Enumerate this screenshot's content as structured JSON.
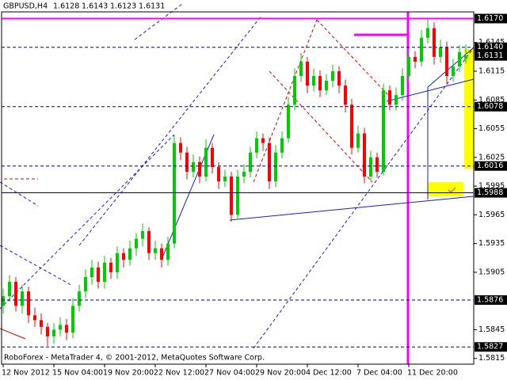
{
  "chart_data": {
    "type": "candlestick",
    "symbol": "GBPUSD,H4",
    "footer": "RoboForex - MetaTrader 4, © 2001-2012, MetaQuotes Software Corp.",
    "bull_color": "#00cc00",
    "bear_color": "#ff0000",
    "ylim": [
      1.5809,
      1.6177
    ],
    "yticks": [
      1.6145,
      1.6115,
      1.6085,
      1.6055,
      1.6025,
      1.5995,
      1.5965,
      1.5935,
      1.5905,
      1.5845,
      1.5815
    ],
    "levels": [
      {
        "value": 1.617,
        "label": "1.6170",
        "color": "#ff00ff",
        "dash": false
      },
      {
        "value": 1.614,
        "label": "1.6140",
        "color": "#000080",
        "dash": true
      },
      {
        "value": 1.6078,
        "color": "#000080",
        "dash": true
      },
      {
        "value": 1.6016,
        "color": "#000080",
        "dash": true
      },
      {
        "value": 1.5988,
        "color": "#000080",
        "dash": false
      },
      {
        "value": 1.5876,
        "color": "#000080",
        "dash": true
      },
      {
        "value": 1.5827,
        "color": "#000080",
        "dash": true
      }
    ],
    "categories": [
      "12 Nov 2012",
      null,
      null,
      null,
      null,
      null,
      null,
      null,
      "15 Nov 04:00",
      null,
      null,
      null,
      null,
      null,
      null,
      null,
      "19 Nov 20:00",
      null,
      null,
      null,
      null,
      null,
      null,
      null,
      "22 Nov 12:00",
      null,
      null,
      null,
      null,
      null,
      null,
      null,
      "27 Nov 04:00",
      null,
      null,
      null,
      null,
      null,
      null,
      null,
      "29 Nov 20:00",
      null,
      null,
      null,
      null,
      null,
      null,
      null,
      "4 Dec 12:00",
      null,
      null,
      null,
      null,
      null,
      null,
      null,
      "7 Dec 04:00",
      null,
      null,
      null,
      null,
      null,
      null,
      null,
      "11 Dec 20:00",
      null,
      null,
      null,
      null,
      null,
      null,
      null,
      null,
      null
    ],
    "ohlc": [
      [
        1.587,
        1.5888,
        1.5862,
        1.588
      ],
      [
        1.588,
        1.5902,
        1.5874,
        1.5895
      ],
      [
        1.5895,
        1.59,
        1.5864,
        1.587
      ],
      [
        1.587,
        1.5892,
        1.5862,
        1.5885
      ],
      [
        1.5885,
        1.589,
        1.5852,
        1.586
      ],
      [
        1.586,
        1.5868,
        1.5848,
        1.5855
      ],
      [
        1.5855,
        1.5862,
        1.584,
        1.5848
      ],
      [
        1.5848,
        1.5852,
        1.5828,
        1.5838
      ],
      [
        1.5838,
        1.5852,
        1.583,
        1.5845
      ],
      [
        1.5845,
        1.5858,
        1.5838,
        1.585
      ],
      [
        1.585,
        1.5856,
        1.5834,
        1.5842
      ],
      [
        1.5842,
        1.5878,
        1.5836,
        1.587
      ],
      [
        1.587,
        1.5892,
        1.5864,
        1.5885
      ],
      [
        1.5885,
        1.5908,
        1.5878,
        1.59
      ],
      [
        1.59,
        1.5918,
        1.5892,
        1.591
      ],
      [
        1.591,
        1.5916,
        1.5888,
        1.5895
      ],
      [
        1.5895,
        1.5922,
        1.5888,
        1.5915
      ],
      [
        1.5915,
        1.592,
        1.5898,
        1.5905
      ],
      [
        1.5905,
        1.5932,
        1.5898,
        1.5925
      ],
      [
        1.5925,
        1.593,
        1.591,
        1.5918
      ],
      [
        1.5918,
        1.5938,
        1.5912,
        1.593
      ],
      [
        1.593,
        1.5946,
        1.5922,
        1.594
      ],
      [
        1.594,
        1.5956,
        1.5932,
        1.5948
      ],
      [
        1.5948,
        1.5952,
        1.5918,
        1.5925
      ],
      [
        1.5925,
        1.5938,
        1.5918,
        1.593
      ],
      [
        1.593,
        1.5935,
        1.591,
        1.5918
      ],
      [
        1.5918,
        1.5942,
        1.5912,
        1.5935
      ],
      [
        1.5935,
        1.6048,
        1.593,
        1.604
      ],
      [
        1.604,
        1.6046,
        1.6022,
        1.603
      ],
      [
        1.603,
        1.6036,
        1.6002,
        1.601
      ],
      [
        1.601,
        1.6028,
        1.6004,
        1.602
      ],
      [
        1.602,
        1.6026,
        1.5998,
        1.6005
      ],
      [
        1.6005,
        1.6044,
        1.6,
        1.6035
      ],
      [
        1.6035,
        1.604,
        1.6008,
        1.6015
      ],
      [
        1.6015,
        1.602,
        1.5992,
        1.6
      ],
      [
        1.6,
        1.6012,
        1.5994,
        1.6005
      ],
      [
        1.6005,
        1.601,
        1.5958,
        1.5965
      ],
      [
        1.5965,
        1.6012,
        1.596,
        1.6005
      ],
      [
        1.6005,
        1.6018,
        1.5998,
        1.601
      ],
      [
        1.601,
        1.6036,
        1.6004,
        1.603
      ],
      [
        1.603,
        1.6052,
        1.6024,
        1.6045
      ],
      [
        1.6045,
        1.605,
        1.6032,
        1.604
      ],
      [
        1.604,
        1.6046,
        1.5992,
        1.6
      ],
      [
        1.6,
        1.6038,
        1.5994,
        1.603
      ],
      [
        1.603,
        1.6052,
        1.6024,
        1.6045
      ],
      [
        1.6045,
        1.6088,
        1.604,
        1.608
      ],
      [
        1.608,
        1.6118,
        1.6074,
        1.611
      ],
      [
        1.611,
        1.6134,
        1.6104,
        1.6125
      ],
      [
        1.6125,
        1.613,
        1.6092,
        1.61
      ],
      [
        1.61,
        1.6118,
        1.6094,
        1.611
      ],
      [
        1.611,
        1.6116,
        1.6088,
        1.6095
      ],
      [
        1.6095,
        1.6112,
        1.609,
        1.6105
      ],
      [
        1.6105,
        1.6122,
        1.6098,
        1.6115
      ],
      [
        1.6115,
        1.612,
        1.6092,
        1.61
      ],
      [
        1.61,
        1.6106,
        1.6072,
        1.608
      ],
      [
        1.608,
        1.6086,
        1.6028,
        1.6035
      ],
      [
        1.6035,
        1.6058,
        1.603,
        1.605
      ],
      [
        1.605,
        1.6056,
        1.5998,
        1.6005
      ],
      [
        1.6005,
        1.6032,
        1.6,
        1.6025
      ],
      [
        1.6025,
        1.603,
        1.6004,
        1.601
      ],
      [
        1.601,
        1.6102,
        1.6006,
        1.6095
      ],
      [
        1.6095,
        1.61,
        1.6074,
        1.608
      ],
      [
        1.608,
        1.6098,
        1.6074,
        1.609
      ],
      [
        1.609,
        1.6118,
        1.6084,
        1.611
      ],
      [
        1.611,
        1.6138,
        1.6104,
        1.613
      ],
      [
        1.613,
        1.6136,
        1.6118,
        1.6125
      ],
      [
        1.6125,
        1.6158,
        1.612,
        1.615
      ],
      [
        1.615,
        1.617,
        1.6144,
        1.616
      ],
      [
        1.616,
        1.6166,
        1.6122,
        1.613
      ],
      [
        1.613,
        1.6148,
        1.6124,
        1.614
      ],
      [
        1.614,
        1.6146,
        1.6102,
        1.611
      ],
      [
        1.611,
        1.6128,
        1.6104,
        1.612
      ],
      [
        1.612,
        1.6142,
        1.6114,
        1.6135
      ],
      [
        1.6128,
        1.6143,
        1.6123,
        1.6131
      ]
    ]
  }
}
